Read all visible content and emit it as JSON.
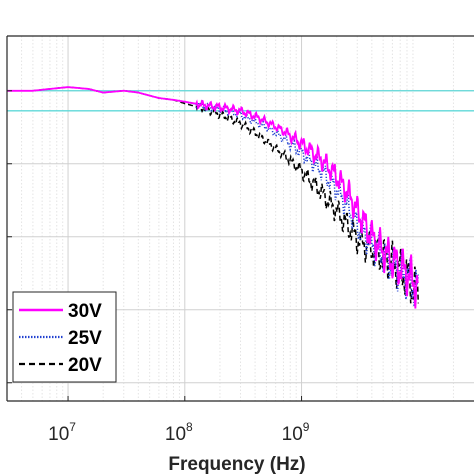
{
  "chart_data": {
    "type": "line",
    "title": "",
    "xlabel": "Frequency (Hz)",
    "ylabel": "",
    "x_scale": "log",
    "xlim": [
      3000000,
      30000000000
    ],
    "ylim": [
      -8.5,
      1.5
    ],
    "x_ticks": [
      {
        "value": 10000000,
        "base": "10",
        "exp": "7"
      },
      {
        "value": 100000000,
        "base": "10",
        "exp": "8"
      },
      {
        "value": 1000000000,
        "base": "10",
        "exp": "9"
      }
    ],
    "y_gridlines": [
      0,
      -2,
      -4,
      -6,
      -8
    ],
    "grid": true,
    "reference_lines": [
      {
        "y": 0,
        "color": "#5fd8d8"
      },
      {
        "y": -0.55,
        "color": "#5fd8d8"
      }
    ],
    "legend": {
      "position": "bottom-left",
      "entries": [
        {
          "label": "30V",
          "color": "#ff00ff",
          "style": "solid"
        },
        {
          "label": "25V",
          "color": "#2040d0",
          "style": "dotted"
        },
        {
          "label": "20V",
          "color": "#000000",
          "style": "dashed"
        }
      ]
    },
    "series": [
      {
        "name": "30V",
        "color": "#ff00ff",
        "x": [
          3000000,
          5000000,
          7000000,
          10000000,
          15000000,
          20000000,
          30000000,
          40000000,
          60000000,
          80000000,
          100000000,
          150000000,
          200000000,
          300000000,
          400000000,
          500000000,
          700000000,
          1000000000,
          1500000000,
          2000000000,
          2500000000,
          3000000000,
          4000000000,
          5000000000,
          6000000000,
          8000000000,
          10000000000
        ],
        "y": [
          0.0,
          0.0,
          0.05,
          0.1,
          0.05,
          -0.05,
          0.0,
          -0.05,
          -0.2,
          -0.25,
          -0.3,
          -0.4,
          -0.45,
          -0.55,
          -0.7,
          -0.85,
          -1.1,
          -1.45,
          -1.9,
          -2.35,
          -2.8,
          -3.3,
          -4.0,
          -4.4,
          -4.65,
          -5.0,
          -5.4
        ]
      },
      {
        "name": "25V",
        "color": "#2040d0",
        "x": [
          3000000,
          5000000,
          7000000,
          10000000,
          15000000,
          20000000,
          30000000,
          40000000,
          60000000,
          80000000,
          100000000,
          150000000,
          200000000,
          300000000,
          400000000,
          500000000,
          700000000,
          1000000000,
          1500000000,
          2000000000,
          2500000000,
          3000000000,
          4000000000,
          5000000000,
          6000000000,
          8000000000,
          10000000000
        ],
        "y": [
          0.0,
          0.0,
          0.05,
          0.1,
          0.05,
          -0.05,
          0.0,
          -0.05,
          -0.2,
          -0.25,
          -0.3,
          -0.42,
          -0.5,
          -0.65,
          -0.85,
          -1.0,
          -1.3,
          -1.7,
          -2.2,
          -2.7,
          -3.2,
          -3.7,
          -4.2,
          -4.5,
          -4.8,
          -5.1,
          -5.5
        ]
      },
      {
        "name": "20V",
        "color": "#000000",
        "x": [
          3000000,
          5000000,
          7000000,
          10000000,
          15000000,
          20000000,
          30000000,
          40000000,
          60000000,
          80000000,
          100000000,
          150000000,
          200000000,
          300000000,
          400000000,
          500000000,
          700000000,
          1000000000,
          1500000000,
          2000000000,
          2500000000,
          3000000000,
          4000000000,
          5000000000,
          6000000000,
          8000000000,
          10000000000
        ],
        "y": [
          0.0,
          0.0,
          0.05,
          0.1,
          0.05,
          -0.05,
          0.0,
          -0.05,
          -0.2,
          -0.25,
          -0.35,
          -0.5,
          -0.65,
          -0.9,
          -1.15,
          -1.4,
          -1.75,
          -2.2,
          -2.8,
          -3.3,
          -3.7,
          -4.05,
          -4.35,
          -4.55,
          -4.7,
          -5.1,
          -5.6
        ]
      }
    ]
  }
}
